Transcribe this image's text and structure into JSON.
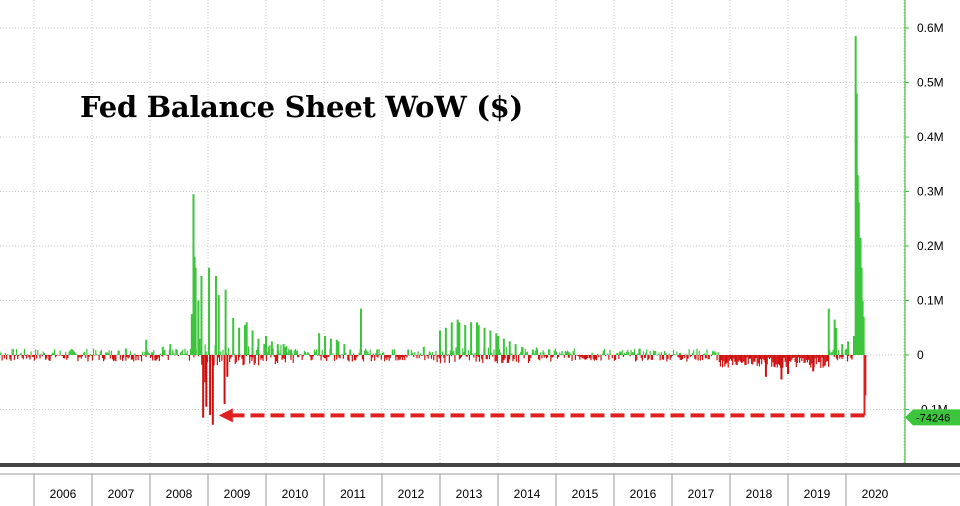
{
  "chart_data": {
    "type": "bar",
    "title": "Fed Balance Sheet WoW ($)",
    "xlabel": "",
    "ylabel": "",
    "x_tick_labels": [
      "2006",
      "2007",
      "2008",
      "2009",
      "2010",
      "2011",
      "2012",
      "2013",
      "2014",
      "2015",
      "2016",
      "2017",
      "2018",
      "2019",
      "2020"
    ],
    "y_tick_labels": [
      "0.6M",
      "0.5M",
      "0.4M",
      "0.3M",
      "0.2M",
      "0.1M",
      "0",
      "-0.1M"
    ],
    "ylim": [
      -0.18,
      0.65
    ],
    "y_unit": "M",
    "xlim": [
      "2005-03",
      "2020-06"
    ],
    "grid": true,
    "positive_color": "#3cc43c",
    "negative_color": "#d01010",
    "last_value": -74246,
    "last_value_label": "-74246",
    "annotation": {
      "type": "dashed-arrow",
      "color": "#e02020",
      "from_x": "2020-04",
      "to_x": "2009-02",
      "y": -0.074
    },
    "series": [
      {
        "x": [
          "2007-08",
          "2007-12",
          "2008-01",
          "2008-03",
          "2008-04",
          "2008-05",
          "2008-06",
          "2008-09",
          "2008-10",
          "2008-10",
          "2008-10",
          "2008-11",
          "2008-11",
          "2008-11",
          "2008-12",
          "2008-12",
          "2008-12",
          "2009-01",
          "2009-01",
          "2009-02",
          "2009-02",
          "2009-03",
          "2009-04",
          "2009-04",
          "2009-05",
          "2009-06",
          "2009-07",
          "2009-08",
          "2009-09",
          "2009-10",
          "2009-11",
          "2009-12",
          "2010-01",
          "2010-02",
          "2010-03",
          "2010-04",
          "2010-05",
          "2010-06",
          "2010-07",
          "2010-09",
          "2010-12",
          "2011-01",
          "2011-02",
          "2011-03",
          "2011-04",
          "2011-05",
          "2011-06",
          "2011-08",
          "2011-12",
          "2012-03",
          "2012-06",
          "2012-09",
          "2013-01",
          "2013-02",
          "2013-03",
          "2013-04",
          "2013-05",
          "2013-06",
          "2013-07",
          "2013-08",
          "2013-09",
          "2013-10",
          "2013-11",
          "2013-12",
          "2014-01",
          "2014-02",
          "2014-03",
          "2014-04",
          "2014-06",
          "2014-08",
          "2014-10",
          "2015-03",
          "2015-08",
          "2016-02",
          "2016-07",
          "2017-02",
          "2017-08",
          "2018-03",
          "2018-08",
          "2018-11",
          "2019-01",
          "2019-06",
          "2019-09",
          "2019-10",
          "2019-11",
          "2019-12",
          "2020-01",
          "2020-02",
          "2020-03",
          "2020-03",
          "2020-03",
          "2020-03",
          "2020-04",
          "2020-04",
          "2020-04",
          "2020-04",
          "2020-05"
        ],
        "values": [
          0.012,
          0.028,
          0.005,
          0.015,
          0.008,
          0.02,
          0.01,
          0.075,
          0.295,
          0.18,
          0.16,
          0.145,
          0.1,
          0.03,
          -0.05,
          -0.095,
          -0.115,
          0.16,
          -0.11,
          0.145,
          -0.128,
          0.11,
          -0.09,
          0.12,
          -0.04,
          0.068,
          0.05,
          0.055,
          0.06,
          0.045,
          0.03,
          0.02,
          0.035,
          0.025,
          0.02,
          0.02,
          0.015,
          0.01,
          0.008,
          0.005,
          0.04,
          0.035,
          0.03,
          0.028,
          0.025,
          0.02,
          0.01,
          0.085,
          0.01,
          0.01,
          0.01,
          0.015,
          0.045,
          0.05,
          0.06,
          0.065,
          0.06,
          0.055,
          0.06,
          0.06,
          0.055,
          0.05,
          0.045,
          0.04,
          0.035,
          0.03,
          0.025,
          0.02,
          0.015,
          0.01,
          0.005,
          -0.005,
          -0.006,
          0.005,
          -0.005,
          0.004,
          -0.006,
          -0.008,
          -0.04,
          -0.045,
          -0.035,
          -0.03,
          0.085,
          0.065,
          0.05,
          0.02,
          0.025,
          0.035,
          0.585,
          0.48,
          0.33,
          0.28,
          0.215,
          0.16,
          0.1,
          0.07,
          -0.074
        ]
      }
    ]
  }
}
